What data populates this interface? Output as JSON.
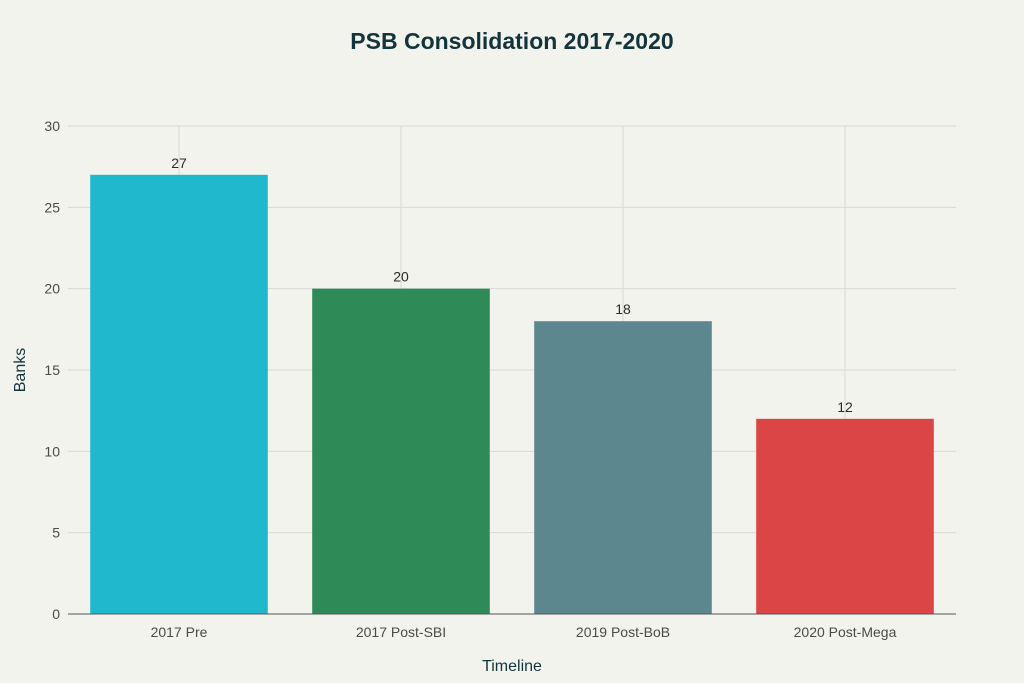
{
  "chart_data": {
    "type": "bar",
    "title": "PSB Consolidation 2017-2020",
    "xlabel": "Timeline",
    "ylabel": "Banks",
    "categories": [
      "2017 Pre",
      "2017 Post-SBI",
      "2019 Post-BoB",
      "2020 Post-Mega"
    ],
    "values": [
      27,
      20,
      18,
      12
    ],
    "colors": [
      "#1fb8cd",
      "#2e8b57",
      "#5d878f",
      "#db4545"
    ],
    "data_labels": [
      "27",
      "20",
      "18",
      "12"
    ],
    "ylim": [
      0,
      30
    ],
    "yticks": [
      0,
      5,
      10,
      15,
      20,
      25,
      30
    ],
    "grid": true,
    "legend": "none"
  }
}
